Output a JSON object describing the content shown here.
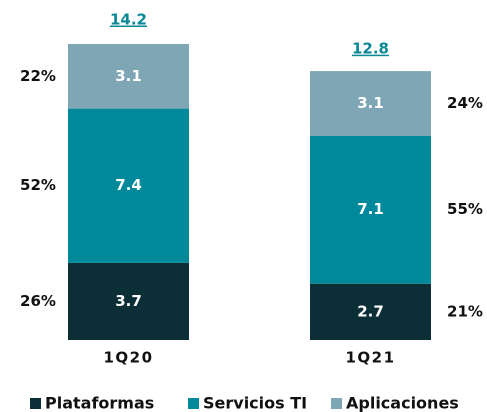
{
  "chart_data": {
    "type": "stacked-bar",
    "categories": [
      "1Q20",
      "1Q21"
    ],
    "totals": [
      14.2,
      12.8
    ],
    "series": [
      {
        "name": "Plataformas",
        "color": "#0c2f37",
        "values": [
          3.7,
          2.7
        ],
        "share_labels": [
          "26%",
          "21%"
        ]
      },
      {
        "name": "Servicios TI",
        "color": "#00899a",
        "values": [
          7.4,
          7.1
        ],
        "share_labels": [
          "52%",
          "55%"
        ]
      },
      {
        "name": "Aplicaciones",
        "color": "#7fa6b5",
        "values": [
          3.1,
          3.1
        ],
        "share_labels": [
          "22%",
          "24%"
        ]
      }
    ]
  }
}
